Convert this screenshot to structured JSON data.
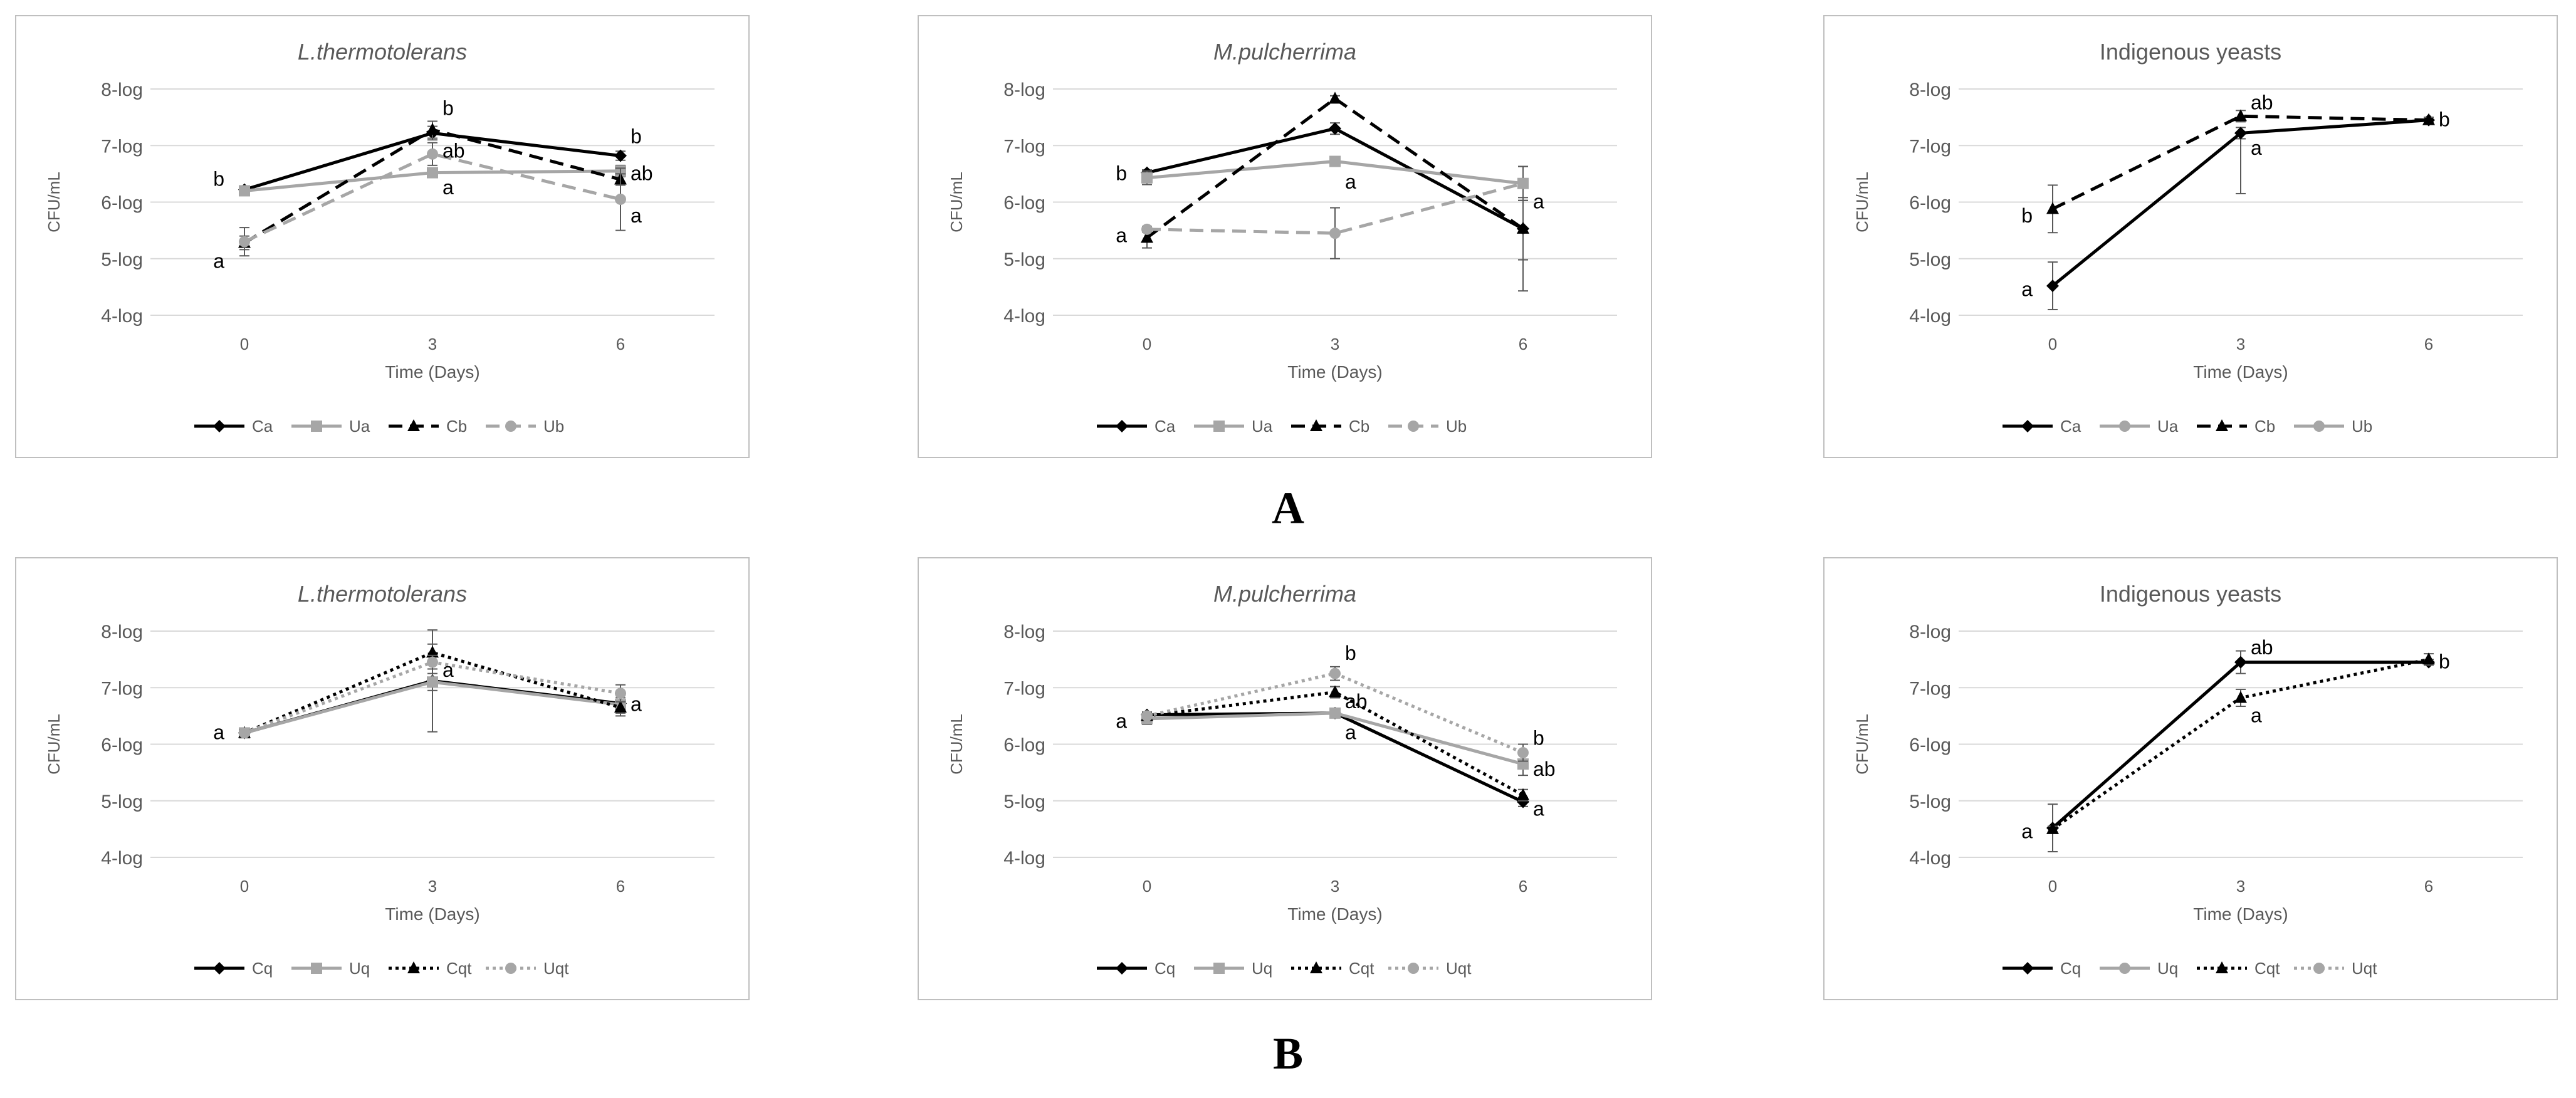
{
  "panel_labels": {
    "A": "A",
    "B": "B"
  },
  "y_axis_label": "CFU/mL",
  "x_axis_label": "Time (Days)",
  "y_tick_labels": [
    "4-log",
    "5-log",
    "6-log",
    "7-log",
    "8-log"
  ],
  "x_tick_labels": [
    "0",
    "3",
    "6"
  ],
  "colors": {
    "black": "#000000",
    "gray": "#a6a6a6",
    "grid": "#d9d9d9",
    "frame": "#bfbfbf",
    "text": "#595959"
  },
  "chart_data": [
    {
      "type": "line",
      "panel": "A",
      "title": "L.thermotolerans",
      "title_italic": true,
      "xlabel": "Time (Days)",
      "ylabel": "CFU/mL",
      "categories": [
        "0",
        "3",
        "6"
      ],
      "ylim": [
        4,
        8
      ],
      "yticks": [
        "4-log",
        "5-log",
        "6-log",
        "7-log",
        "8-log"
      ],
      "legend": "bottom",
      "series": [
        {
          "name": "Ca",
          "values": [
            6.22,
            7.22,
            6.82
          ],
          "color": "#000000",
          "dash": "solid",
          "marker": "diamond",
          "err": [
            0.05,
            0.12,
            0.08
          ]
        },
        {
          "name": "Ua",
          "values": [
            6.2,
            6.52,
            6.55
          ],
          "color": "#a6a6a6",
          "dash": "solid",
          "marker": "square",
          "err": [
            0.05,
            0.08,
            0.1
          ]
        },
        {
          "name": "Cb",
          "values": [
            5.28,
            7.28,
            6.4
          ],
          "color": "#000000",
          "dash": "dashed",
          "marker": "triangle",
          "err": [
            0.12,
            0.15,
            0.1
          ]
        },
        {
          "name": "Ub",
          "values": [
            5.3,
            6.85,
            6.05
          ],
          "color": "#a6a6a6",
          "dash": "dashed",
          "marker": "circle",
          "err": [
            0.25,
            0.2,
            0.55
          ]
        }
      ],
      "annotations": [
        {
          "text": "b",
          "x": 0,
          "y": 6.4
        },
        {
          "text": "a",
          "x": 0,
          "y": 4.95
        },
        {
          "text": "b",
          "x": 1,
          "y": 7.65
        },
        {
          "text": "ab",
          "x": 1,
          "y": 6.9
        },
        {
          "text": "a",
          "x": 1,
          "y": 6.25
        },
        {
          "text": "b",
          "x": 2,
          "y": 7.15
        },
        {
          "text": "ab",
          "x": 2,
          "y": 6.5
        },
        {
          "text": "a",
          "x": 2,
          "y": 5.75
        }
      ]
    },
    {
      "type": "line",
      "panel": "A",
      "title": "M.pulcherrima",
      "title_italic": true,
      "xlabel": "Time (Days)",
      "ylabel": "CFU/mL",
      "categories": [
        "0",
        "3",
        "6"
      ],
      "ylim": [
        4,
        8
      ],
      "yticks": [
        "4-log",
        "5-log",
        "6-log",
        "7-log",
        "8-log"
      ],
      "legend": "bottom",
      "series": [
        {
          "name": "Ca",
          "values": [
            6.52,
            7.3,
            5.53
          ],
          "color": "#000000",
          "dash": "solid",
          "marker": "diamond",
          "err": [
            0.05,
            0.1,
            0.55
          ]
        },
        {
          "name": "Ua",
          "values": [
            6.43,
            6.72,
            6.33
          ],
          "color": "#a6a6a6",
          "dash": "solid",
          "marker": "square",
          "err": [
            0.12,
            0.05,
            0.3
          ]
        },
        {
          "name": "Cb",
          "values": [
            5.37,
            7.83,
            5.53
          ],
          "color": "#000000",
          "dash": "dashed",
          "marker": "triangle",
          "err": [
            0.18,
            0.05,
            1.1
          ]
        },
        {
          "name": "Ub",
          "values": [
            5.52,
            5.45,
            6.33
          ],
          "color": "#a6a6a6",
          "dash": "dashed",
          "marker": "circle",
          "err": [
            0.05,
            0.45,
            0.3
          ]
        }
      ],
      "annotations": [
        {
          "text": "b",
          "x": 0,
          "y": 6.5
        },
        {
          "text": "a",
          "x": 0,
          "y": 5.4
        },
        {
          "text": "a",
          "x": 1,
          "y": 6.35
        },
        {
          "text": "a",
          "x": 2,
          "y": 6.0
        }
      ]
    },
    {
      "type": "line",
      "panel": "A",
      "title": "Indigenous yeasts",
      "title_italic": false,
      "xlabel": "Time (Days)",
      "ylabel": "CFU/mL",
      "categories": [
        "0",
        "3",
        "6"
      ],
      "ylim": [
        4,
        8
      ],
      "yticks": [
        "4-log",
        "5-log",
        "6-log",
        "7-log",
        "8-log"
      ],
      "legend": "bottom",
      "series": [
        {
          "name": "Ca",
          "values": [
            4.52,
            7.22,
            7.45
          ],
          "color": "#000000",
          "dash": "solid",
          "marker": "diamond",
          "err": [
            0.42,
            0.1,
            0.05
          ]
        },
        {
          "name": "Ua",
          "values": [
            null,
            null,
            null
          ],
          "color": "#a6a6a6",
          "dash": "solid",
          "marker": "circle",
          "err": [
            0,
            0,
            0
          ]
        },
        {
          "name": "Cb",
          "values": [
            5.88,
            7.52,
            7.45
          ],
          "color": "#000000",
          "dash": "dashed",
          "marker": "triangle",
          "err": [
            0.42,
            0.1,
            0.05
          ]
        },
        {
          "name": "Ub",
          "values": [
            null,
            null,
            null
          ],
          "color": "#a6a6a6",
          "dash": "solid",
          "marker": "circle",
          "err": [
            0,
            0,
            0
          ]
        }
      ],
      "annotations": [
        {
          "text": "b",
          "x": 0,
          "y": 5.75
        },
        {
          "text": "a",
          "x": 0,
          "y": 4.45
        },
        {
          "text": "ab",
          "x": 1,
          "y": 7.75
        },
        {
          "text": "a",
          "x": 1,
          "y": 6.95
        },
        {
          "text": "b",
          "x": 2,
          "y": 7.45
        }
      ],
      "extra_error_bars": [
        {
          "x": 1,
          "low": 6.15,
          "high": 7.22
        }
      ]
    },
    {
      "type": "line",
      "panel": "B",
      "title": "L.thermotolerans",
      "title_italic": true,
      "xlabel": "Time (Days)",
      "ylabel": "CFU/mL",
      "categories": [
        "0",
        "3",
        "6"
      ],
      "ylim": [
        4,
        8
      ],
      "yticks": [
        "4-log",
        "5-log",
        "6-log",
        "7-log",
        "8-log"
      ],
      "legend": "bottom",
      "series": [
        {
          "name": "Cq",
          "values": [
            6.2,
            7.12,
            6.72
          ],
          "color": "#000000",
          "dash": "solid",
          "marker": "diamond",
          "err": [
            0.05,
            0.9,
            0.1
          ]
        },
        {
          "name": "Uq",
          "values": [
            6.2,
            7.1,
            6.7
          ],
          "color": "#a6a6a6",
          "dash": "solid",
          "marker": "square",
          "err": [
            0.05,
            0.15,
            0.2
          ]
        },
        {
          "name": "Cqt",
          "values": [
            6.2,
            7.62,
            6.65
          ],
          "color": "#000000",
          "dash": "dotted",
          "marker": "triangle",
          "err": [
            0.05,
            0.15,
            0.1
          ]
        },
        {
          "name": "Uqt",
          "values": [
            6.2,
            7.45,
            6.9
          ],
          "color": "#a6a6a6",
          "dash": "dotted",
          "marker": "circle",
          "err": [
            0.05,
            0.12,
            0.15
          ]
        }
      ],
      "annotations": [
        {
          "text": "a",
          "x": 0,
          "y": 6.2
        },
        {
          "text": "a",
          "x": 1,
          "y": 7.3
        },
        {
          "text": "a",
          "x": 2,
          "y": 6.7
        }
      ]
    },
    {
      "type": "line",
      "panel": "B",
      "title": "M.pulcherrima",
      "title_italic": true,
      "xlabel": "Time (Days)",
      "ylabel": "CFU/mL",
      "categories": [
        "0",
        "3",
        "6"
      ],
      "ylim": [
        4,
        8
      ],
      "yticks": [
        "4-log",
        "5-log",
        "6-log",
        "7-log",
        "8-log"
      ],
      "legend": "bottom",
      "series": [
        {
          "name": "Cq",
          "values": [
            6.52,
            6.55,
            4.98
          ],
          "color": "#000000",
          "dash": "solid",
          "marker": "diamond",
          "err": [
            0.05,
            0.05,
            0.08
          ]
        },
        {
          "name": "Uq",
          "values": [
            6.45,
            6.55,
            5.65
          ],
          "color": "#a6a6a6",
          "dash": "solid",
          "marker": "square",
          "err": [
            0.1,
            0.05,
            0.2
          ]
        },
        {
          "name": "Cqt",
          "values": [
            6.5,
            6.92,
            5.1
          ],
          "color": "#000000",
          "dash": "dotted",
          "marker": "triangle",
          "err": [
            0.05,
            0.1,
            0.1
          ]
        },
        {
          "name": "Uqt",
          "values": [
            6.5,
            7.25,
            5.85
          ],
          "color": "#a6a6a6",
          "dash": "dotted",
          "marker": "circle",
          "err": [
            0.05,
            0.12,
            0.15
          ]
        }
      ],
      "annotations": [
        {
          "text": "a",
          "x": 0,
          "y": 6.4
        },
        {
          "text": "b",
          "x": 1,
          "y": 7.6
        },
        {
          "text": "ab",
          "x": 1,
          "y": 6.75
        },
        {
          "text": "a",
          "x": 1,
          "y": 6.2
        },
        {
          "text": "b",
          "x": 2,
          "y": 6.1
        },
        {
          "text": "ab",
          "x": 2,
          "y": 5.55
        },
        {
          "text": "a",
          "x": 2,
          "y": 4.85
        }
      ]
    },
    {
      "type": "line",
      "panel": "B",
      "title": "Indigenous yeasts",
      "title_italic": false,
      "xlabel": "Time (Days)",
      "ylabel": "CFU/mL",
      "categories": [
        "0",
        "3",
        "6"
      ],
      "ylim": [
        4,
        8
      ],
      "yticks": [
        "4-log",
        "5-log",
        "6-log",
        "7-log",
        "8-log"
      ],
      "legend": "bottom",
      "series": [
        {
          "name": "Cq",
          "values": [
            4.52,
            7.45,
            7.45
          ],
          "color": "#000000",
          "dash": "solid",
          "marker": "diamond",
          "err": [
            0.42,
            0.2,
            0.05
          ]
        },
        {
          "name": "Uq",
          "values": [
            null,
            null,
            null
          ],
          "color": "#a6a6a6",
          "dash": "solid",
          "marker": "circle",
          "err": [
            0,
            0,
            0
          ]
        },
        {
          "name": "Cqt",
          "values": [
            4.5,
            6.82,
            7.5
          ],
          "color": "#000000",
          "dash": "dotted",
          "marker": "triangle",
          "err": [
            0.05,
            0.15,
            0.1
          ]
        },
        {
          "name": "Uqt",
          "values": [
            null,
            null,
            null
          ],
          "color": "#a6a6a6",
          "dash": "dotted",
          "marker": "circle",
          "err": [
            0,
            0,
            0
          ]
        }
      ],
      "annotations": [
        {
          "text": "a",
          "x": 0,
          "y": 4.45
        },
        {
          "text": "ab",
          "x": 1,
          "y": 7.7
        },
        {
          "text": "a",
          "x": 1,
          "y": 6.5
        },
        {
          "text": "b",
          "x": 2,
          "y": 7.45
        }
      ]
    }
  ]
}
